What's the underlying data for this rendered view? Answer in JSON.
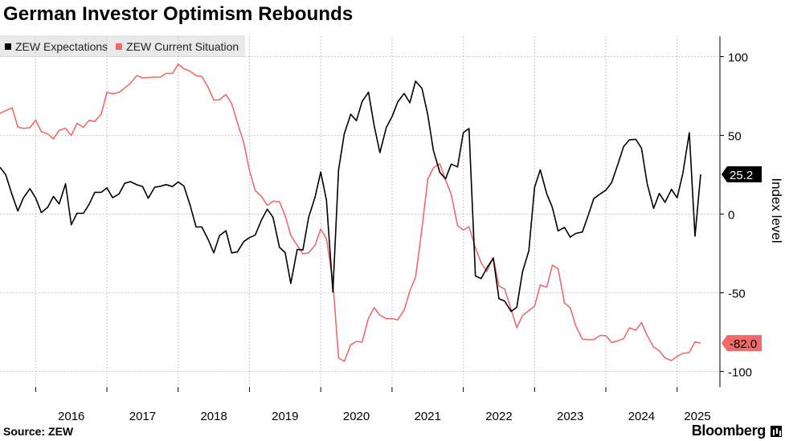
{
  "title": "German Investor Optimism Rebounds",
  "source": "Source: ZEW",
  "brand": "Bloomberg",
  "colors": {
    "expectations": "#000000",
    "current": "#f06a6a",
    "grid": "#c8c8c8",
    "current_badge": "#f06a6a",
    "expectations_badge": "#000000"
  },
  "chart_data": {
    "type": "line",
    "title": "German Investor Optimism Rebounds",
    "ylabel": "Index level",
    "xlabel": "",
    "ylim": [
      -110,
      113
    ],
    "yticks": [
      100,
      50,
      0,
      -50,
      -100
    ],
    "ytick_labels": [
      "100",
      "50",
      "0",
      "-50",
      "-100"
    ],
    "xlim": [
      2015.5,
      2025.6
    ],
    "xtick_labels": [
      "2016",
      "2017",
      "2018",
      "2019",
      "2020",
      "2021",
      "2022",
      "2023",
      "2024",
      "2025"
    ],
    "legend": "top-left",
    "grid": true,
    "series": [
      {
        "name": "ZEW Expectations",
        "last_label": "25.2",
        "points": [
          [
            2015.5,
            29.7
          ],
          [
            2015.58,
            25.0
          ],
          [
            2015.67,
            12.1
          ],
          [
            2015.75,
            1.9
          ],
          [
            2015.83,
            10.4
          ],
          [
            2015.92,
            16.1
          ],
          [
            2016.0,
            10.2
          ],
          [
            2016.08,
            0.9
          ],
          [
            2016.17,
            4.3
          ],
          [
            2016.25,
            11.2
          ],
          [
            2016.33,
            6.4
          ],
          [
            2016.42,
            19.2
          ],
          [
            2016.5,
            -6.8
          ],
          [
            2016.58,
            0.5
          ],
          [
            2016.67,
            0.5
          ],
          [
            2016.75,
            6.2
          ],
          [
            2016.83,
            13.8
          ],
          [
            2016.92,
            13.8
          ],
          [
            2017.0,
            16.6
          ],
          [
            2017.08,
            10.4
          ],
          [
            2017.17,
            12.8
          ],
          [
            2017.25,
            19.5
          ],
          [
            2017.33,
            20.6
          ],
          [
            2017.42,
            18.6
          ],
          [
            2017.5,
            17.5
          ],
          [
            2017.58,
            10.0
          ],
          [
            2017.67,
            17.0
          ],
          [
            2017.75,
            17.6
          ],
          [
            2017.83,
            18.7
          ],
          [
            2017.92,
            17.4
          ],
          [
            2018.0,
            20.4
          ],
          [
            2018.08,
            17.8
          ],
          [
            2018.17,
            5.1
          ],
          [
            2018.25,
            -8.2
          ],
          [
            2018.33,
            -8.2
          ],
          [
            2018.42,
            -16.1
          ],
          [
            2018.5,
            -24.7
          ],
          [
            2018.58,
            -13.7
          ],
          [
            2018.67,
            -10.6
          ],
          [
            2018.75,
            -24.7
          ],
          [
            2018.83,
            -24.1
          ],
          [
            2018.92,
            -17.5
          ],
          [
            2019.0,
            -15.0
          ],
          [
            2019.08,
            -13.4
          ],
          [
            2019.17,
            -3.6
          ],
          [
            2019.25,
            3.1
          ],
          [
            2019.33,
            -2.1
          ],
          [
            2019.42,
            -21.1
          ],
          [
            2019.5,
            -24.5
          ],
          [
            2019.58,
            -44.1
          ],
          [
            2019.67,
            -22.5
          ],
          [
            2019.75,
            -22.8
          ],
          [
            2019.83,
            -2.1
          ],
          [
            2019.92,
            10.7
          ],
          [
            2020.0,
            26.7
          ],
          [
            2020.08,
            8.7
          ],
          [
            2020.17,
            -49.5
          ],
          [
            2020.25,
            28.2
          ],
          [
            2020.33,
            51.0
          ],
          [
            2020.42,
            63.4
          ],
          [
            2020.5,
            59.3
          ],
          [
            2020.58,
            71.5
          ],
          [
            2020.67,
            77.4
          ],
          [
            2020.75,
            56.1
          ],
          [
            2020.83,
            39.0
          ],
          [
            2020.92,
            55.0
          ],
          [
            2021.0,
            61.8
          ],
          [
            2021.08,
            71.2
          ],
          [
            2021.17,
            76.6
          ],
          [
            2021.25,
            70.7
          ],
          [
            2021.33,
            84.4
          ],
          [
            2021.42,
            79.8
          ],
          [
            2021.5,
            63.3
          ],
          [
            2021.58,
            40.4
          ],
          [
            2021.67,
            26.5
          ],
          [
            2021.75,
            22.3
          ],
          [
            2021.83,
            31.7
          ],
          [
            2021.92,
            29.9
          ],
          [
            2022.0,
            51.7
          ],
          [
            2022.08,
            54.3
          ],
          [
            2022.17,
            -39.3
          ],
          [
            2022.25,
            -41.0
          ],
          [
            2022.33,
            -34.3
          ],
          [
            2022.42,
            -28.0
          ],
          [
            2022.5,
            -53.8
          ],
          [
            2022.58,
            -55.3
          ],
          [
            2022.67,
            -61.9
          ],
          [
            2022.75,
            -59.2
          ],
          [
            2022.83,
            -36.7
          ],
          [
            2022.92,
            -23.3
          ],
          [
            2023.0,
            16.9
          ],
          [
            2023.08,
            28.1
          ],
          [
            2023.17,
            13.0
          ],
          [
            2023.25,
            4.1
          ],
          [
            2023.33,
            -10.7
          ],
          [
            2023.42,
            -8.5
          ],
          [
            2023.5,
            -14.7
          ],
          [
            2023.58,
            -12.3
          ],
          [
            2023.67,
            -11.4
          ],
          [
            2023.75,
            -1.1
          ],
          [
            2023.83,
            9.8
          ],
          [
            2023.92,
            12.8
          ],
          [
            2024.0,
            15.2
          ],
          [
            2024.08,
            19.9
          ],
          [
            2024.17,
            31.7
          ],
          [
            2024.25,
            42.9
          ],
          [
            2024.33,
            47.1
          ],
          [
            2024.42,
            47.5
          ],
          [
            2024.5,
            41.8
          ],
          [
            2024.58,
            19.2
          ],
          [
            2024.67,
            3.6
          ],
          [
            2024.75,
            13.1
          ],
          [
            2024.83,
            7.4
          ],
          [
            2024.92,
            15.7
          ],
          [
            2025.0,
            10.3
          ],
          [
            2025.08,
            26.0
          ],
          [
            2025.17,
            51.6
          ],
          [
            2025.25,
            -14.0
          ],
          [
            2025.33,
            25.2
          ]
        ]
      },
      {
        "name": "ZEW Current Situation",
        "last_label": "-82.0",
        "points": [
          [
            2015.5,
            63.9
          ],
          [
            2015.58,
            65.7
          ],
          [
            2015.67,
            67.5
          ],
          [
            2015.75,
            55.2
          ],
          [
            2015.83,
            54.4
          ],
          [
            2015.92,
            54.9
          ],
          [
            2016.0,
            59.7
          ],
          [
            2016.08,
            52.3
          ],
          [
            2016.17,
            50.9
          ],
          [
            2016.25,
            47.7
          ],
          [
            2016.33,
            53.1
          ],
          [
            2016.42,
            54.5
          ],
          [
            2016.5,
            49.8
          ],
          [
            2016.58,
            57.6
          ],
          [
            2016.67,
            55.1
          ],
          [
            2016.75,
            59.5
          ],
          [
            2016.83,
            58.8
          ],
          [
            2016.92,
            63.5
          ],
          [
            2017.0,
            77.3
          ],
          [
            2017.08,
            76.4
          ],
          [
            2017.17,
            77.3
          ],
          [
            2017.25,
            80.1
          ],
          [
            2017.33,
            83.0
          ],
          [
            2017.42,
            88.0
          ],
          [
            2017.5,
            86.4
          ],
          [
            2017.58,
            86.7
          ],
          [
            2017.67,
            87.0
          ],
          [
            2017.75,
            87.0
          ],
          [
            2017.83,
            89.3
          ],
          [
            2017.92,
            89.3
          ],
          [
            2018.0,
            95.2
          ],
          [
            2018.08,
            92.3
          ],
          [
            2018.17,
            90.7
          ],
          [
            2018.25,
            87.9
          ],
          [
            2018.33,
            87.4
          ],
          [
            2018.42,
            80.6
          ],
          [
            2018.5,
            72.4
          ],
          [
            2018.58,
            72.6
          ],
          [
            2018.67,
            76.0
          ],
          [
            2018.75,
            70.1
          ],
          [
            2018.83,
            58.2
          ],
          [
            2018.92,
            45.3
          ],
          [
            2019.0,
            27.6
          ],
          [
            2019.08,
            15.0
          ],
          [
            2019.17,
            11.1
          ],
          [
            2019.25,
            5.5
          ],
          [
            2019.33,
            8.2
          ],
          [
            2019.42,
            7.8
          ],
          [
            2019.5,
            -1.1
          ],
          [
            2019.58,
            -13.5
          ],
          [
            2019.67,
            -19.9
          ],
          [
            2019.75,
            -25.3
          ],
          [
            2019.83,
            -24.7
          ],
          [
            2019.92,
            -19.9
          ],
          [
            2020.0,
            -9.5
          ],
          [
            2020.08,
            -15.7
          ],
          [
            2020.17,
            -43.1
          ],
          [
            2020.25,
            -91.5
          ],
          [
            2020.33,
            -93.5
          ],
          [
            2020.42,
            -83.1
          ],
          [
            2020.5,
            -80.9
          ],
          [
            2020.58,
            -81.3
          ],
          [
            2020.67,
            -66.2
          ],
          [
            2020.75,
            -59.5
          ],
          [
            2020.83,
            -64.3
          ],
          [
            2020.92,
            -66.5
          ],
          [
            2021.0,
            -66.4
          ],
          [
            2021.08,
            -67.2
          ],
          [
            2021.17,
            -61.0
          ],
          [
            2021.25,
            -48.8
          ],
          [
            2021.33,
            -40.1
          ],
          [
            2021.42,
            -9.1
          ],
          [
            2021.5,
            21.9
          ],
          [
            2021.58,
            29.3
          ],
          [
            2021.67,
            31.9
          ],
          [
            2021.75,
            21.6
          ],
          [
            2021.83,
            12.5
          ],
          [
            2021.92,
            -7.4
          ],
          [
            2022.0,
            -10.2
          ],
          [
            2022.08,
            -8.1
          ],
          [
            2022.17,
            -21.4
          ],
          [
            2022.25,
            -30.8
          ],
          [
            2022.33,
            -36.5
          ],
          [
            2022.42,
            -27.6
          ],
          [
            2022.5,
            -45.8
          ],
          [
            2022.58,
            -47.6
          ],
          [
            2022.67,
            -60.5
          ],
          [
            2022.75,
            -72.2
          ],
          [
            2022.83,
            -64.5
          ],
          [
            2022.92,
            -61.4
          ],
          [
            2023.0,
            -58.6
          ],
          [
            2023.08,
            -45.1
          ],
          [
            2023.17,
            -46.5
          ],
          [
            2023.25,
            -32.5
          ],
          [
            2023.33,
            -34.8
          ],
          [
            2023.42,
            -56.5
          ],
          [
            2023.5,
            -59.5
          ],
          [
            2023.58,
            -71.3
          ],
          [
            2023.67,
            -79.4
          ],
          [
            2023.75,
            -79.9
          ],
          [
            2023.83,
            -79.8
          ],
          [
            2023.92,
            -77.1
          ],
          [
            2024.0,
            -77.3
          ],
          [
            2024.08,
            -81.7
          ],
          [
            2024.17,
            -80.5
          ],
          [
            2024.25,
            -79.2
          ],
          [
            2024.33,
            -72.3
          ],
          [
            2024.42,
            -73.8
          ],
          [
            2024.5,
            -68.9
          ],
          [
            2024.58,
            -77.3
          ],
          [
            2024.67,
            -84.5
          ],
          [
            2024.75,
            -86.9
          ],
          [
            2024.83,
            -91.4
          ],
          [
            2024.92,
            -93.1
          ],
          [
            2025.0,
            -90.4
          ],
          [
            2025.08,
            -88.5
          ],
          [
            2025.17,
            -88.0
          ],
          [
            2025.25,
            -81.2
          ],
          [
            2025.33,
            -82.0
          ]
        ]
      }
    ]
  }
}
